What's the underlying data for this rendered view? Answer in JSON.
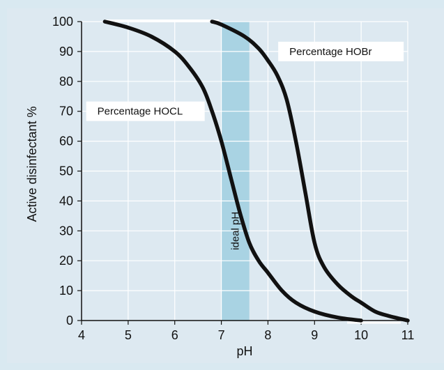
{
  "chart_data": {
    "type": "line",
    "xlabel": "pH",
    "ylabel": "Active disinfectant %",
    "xlim": [
      4,
      11
    ],
    "ylim": [
      0,
      100
    ],
    "x_ticks": [
      4,
      5,
      6,
      7,
      8,
      9,
      10,
      11
    ],
    "y_ticks": [
      0,
      10,
      20,
      30,
      40,
      50,
      60,
      70,
      80,
      90,
      100
    ],
    "grid": true,
    "series": [
      {
        "name": "Percentage  HOCL",
        "x": [
          4.5,
          5.0,
          5.5,
          6.0,
          6.3,
          6.6,
          6.8,
          7.0,
          7.2,
          7.4,
          7.6,
          7.8,
          8.0,
          8.3,
          8.6,
          9.0,
          9.5,
          10.0
        ],
        "y": [
          100,
          98,
          95,
          90,
          85,
          78,
          70,
          60,
          48,
          36,
          26,
          20,
          16,
          10,
          6,
          3,
          1,
          0
        ]
      },
      {
        "name": "Percentage  HOBr",
        "x": [
          6.8,
          7.0,
          7.5,
          7.8,
          8.0,
          8.2,
          8.4,
          8.6,
          8.8,
          9.0,
          9.2,
          9.5,
          9.8,
          10.0,
          10.3,
          10.6,
          11.0
        ],
        "y": [
          100,
          99,
          95,
          91,
          87,
          82,
          74,
          60,
          43,
          26,
          18,
          12,
          8,
          6,
          3,
          1.5,
          0
        ]
      }
    ],
    "band": {
      "label": "ideal pH",
      "from": 7.0,
      "to": 7.6,
      "color": "#a9d3e3"
    },
    "colors": {
      "background": "#dde9f1",
      "grid": "#ffffff",
      "line": "#111111"
    }
  }
}
